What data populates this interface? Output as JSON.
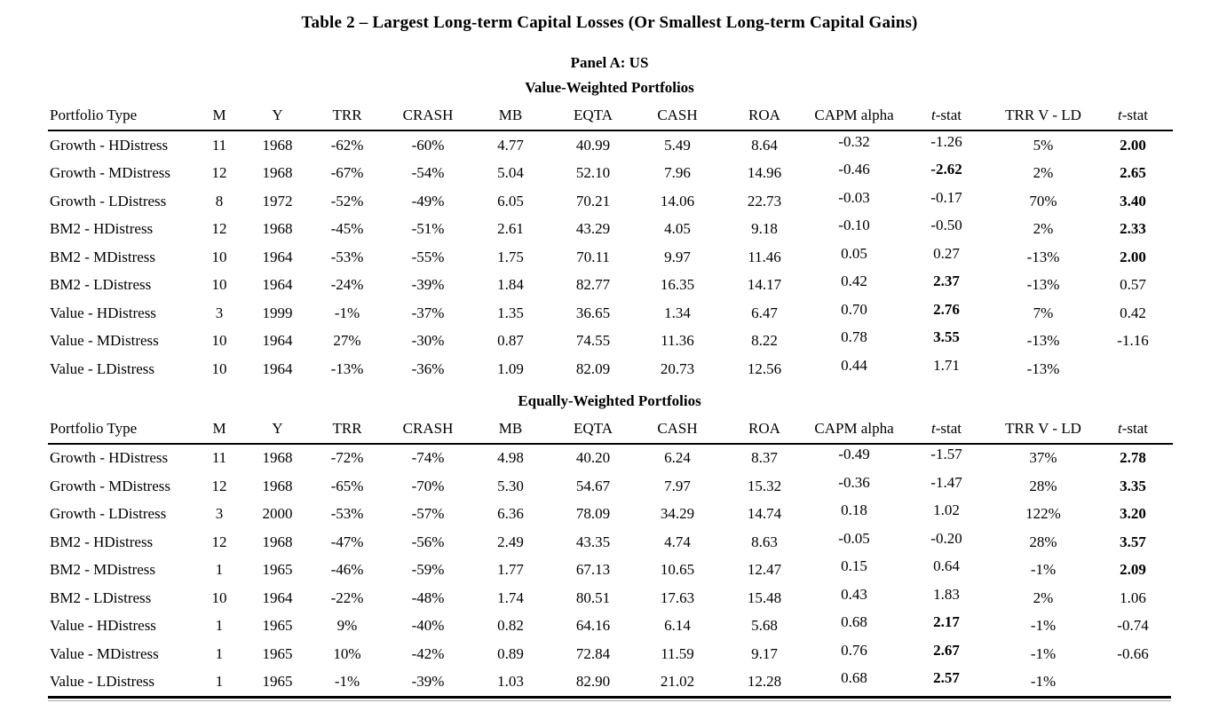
{
  "title": "Table 2 – Largest Long-term Capital Losses (Or Smallest Long-term Capital Gains)",
  "panel": "Panel A: US",
  "sections": [
    {
      "heading": "Value-Weighted Portfolios",
      "columns": [
        {
          "id": "portfolio-type",
          "label": "Portfolio Type"
        },
        {
          "id": "m",
          "label": "M"
        },
        {
          "id": "y",
          "label": "Y"
        },
        {
          "id": "trr",
          "label": "TRR"
        },
        {
          "id": "crash",
          "label": "CRASH"
        },
        {
          "id": "mb",
          "label": "MB"
        },
        {
          "id": "eqta",
          "label": "EQTA"
        },
        {
          "id": "cash",
          "label": "CASH"
        },
        {
          "id": "roa",
          "label": "ROA"
        },
        {
          "id": "capm-alpha",
          "label": "CAPM alpha"
        },
        {
          "id": "t-stat-alpha",
          "label": "t-stat",
          "italic_first": true
        },
        {
          "id": "trr-v-ld",
          "label": "TRR V - LD"
        },
        {
          "id": "t-stat-trr",
          "label": "t-stat",
          "italic_first": true
        }
      ],
      "rows": [
        {
          "cells": [
            "Growth - HDistress",
            "11",
            "1968",
            "-62%",
            "-60%",
            "4.77",
            "40.99",
            "5.49",
            "8.64",
            "-0.32",
            "-1.26",
            "5%",
            "2.00"
          ],
          "bold": [
            12
          ]
        },
        {
          "cells": [
            "Growth - MDistress",
            "12",
            "1968",
            "-67%",
            "-54%",
            "5.04",
            "52.10",
            "7.96",
            "14.96",
            "-0.46",
            "-2.62",
            "2%",
            "2.65"
          ],
          "bold": [
            10,
            12
          ]
        },
        {
          "cells": [
            "Growth - LDistress",
            "8",
            "1972",
            "-52%",
            "-49%",
            "6.05",
            "70.21",
            "14.06",
            "22.73",
            "-0.03",
            "-0.17",
            "70%",
            "3.40"
          ],
          "bold": [
            12
          ]
        },
        {
          "cells": [
            "BM2 - HDistress",
            "12",
            "1968",
            "-45%",
            "-51%",
            "2.61",
            "43.29",
            "4.05",
            "9.18",
            "-0.10",
            "-0.50",
            "2%",
            "2.33"
          ],
          "bold": [
            12
          ]
        },
        {
          "cells": [
            "BM2 - MDistress",
            "10",
            "1964",
            "-53%",
            "-55%",
            "1.75",
            "70.11",
            "9.97",
            "11.46",
            "0.05",
            "0.27",
            "-13%",
            "2.00"
          ],
          "bold": [
            12
          ]
        },
        {
          "cells": [
            "BM2 - LDistress",
            "10",
            "1964",
            "-24%",
            "-39%",
            "1.84",
            "82.77",
            "16.35",
            "14.17",
            "0.42",
            "2.37",
            "-13%",
            "0.57"
          ],
          "bold": [
            10
          ]
        },
        {
          "cells": [
            "Value - HDistress",
            "3",
            "1999",
            "-1%",
            "-37%",
            "1.35",
            "36.65",
            "1.34",
            "6.47",
            "0.70",
            "2.76",
            "7%",
            "0.42"
          ],
          "bold": [
            10
          ]
        },
        {
          "cells": [
            "Value - MDistress",
            "10",
            "1964",
            "27%",
            "-30%",
            "0.87",
            "74.55",
            "11.36",
            "8.22",
            "0.78",
            "3.55",
            "-13%",
            "-1.16"
          ],
          "bold": [
            10
          ]
        },
        {
          "cells": [
            "Value - LDistress",
            "10",
            "1964",
            "-13%",
            "-36%",
            "1.09",
            "82.09",
            "20.73",
            "12.56",
            "0.44",
            "1.71",
            "-13%",
            ""
          ],
          "bold": []
        }
      ]
    },
    {
      "heading": "Equally-Weighted Portfolios",
      "columns": [
        {
          "id": "portfolio-type",
          "label": "Portfolio Type"
        },
        {
          "id": "m",
          "label": "M"
        },
        {
          "id": "y",
          "label": "Y"
        },
        {
          "id": "trr",
          "label": "TRR"
        },
        {
          "id": "crash",
          "label": "CRASH"
        },
        {
          "id": "mb",
          "label": "MB"
        },
        {
          "id": "eqta",
          "label": "EQTA"
        },
        {
          "id": "cash",
          "label": "CASH"
        },
        {
          "id": "roa",
          "label": "ROA"
        },
        {
          "id": "capm-alpha",
          "label": "CAPM alpha"
        },
        {
          "id": "t-stat-alpha",
          "label": "t-stat",
          "italic_first": true
        },
        {
          "id": "trr-v-ld",
          "label": "TRR V - LD"
        },
        {
          "id": "t-stat-trr",
          "label": "t-stat",
          "italic_first": true
        }
      ],
      "rows": [
        {
          "cells": [
            "Growth - HDistress",
            "11",
            "1968",
            "-72%",
            "-74%",
            "4.98",
            "40.20",
            "6.24",
            "8.37",
            "-0.49",
            "-1.57",
            "37%",
            "2.78"
          ],
          "bold": [
            12
          ]
        },
        {
          "cells": [
            "Growth - MDistress",
            "12",
            "1968",
            "-65%",
            "-70%",
            "5.30",
            "54.67",
            "7.97",
            "15.32",
            "-0.36",
            "-1.47",
            "28%",
            "3.35"
          ],
          "bold": [
            12
          ]
        },
        {
          "cells": [
            "Growth - LDistress",
            "3",
            "2000",
            "-53%",
            "-57%",
            "6.36",
            "78.09",
            "34.29",
            "14.74",
            "0.18",
            "1.02",
            "122%",
            "3.20"
          ],
          "bold": [
            12
          ]
        },
        {
          "cells": [
            "BM2 - HDistress",
            "12",
            "1968",
            "-47%",
            "-56%",
            "2.49",
            "43.35",
            "4.74",
            "8.63",
            "-0.05",
            "-0.20",
            "28%",
            "3.57"
          ],
          "bold": [
            12
          ]
        },
        {
          "cells": [
            "BM2 - MDistress",
            "1",
            "1965",
            "-46%",
            "-59%",
            "1.77",
            "67.13",
            "10.65",
            "12.47",
            "0.15",
            "0.64",
            "-1%",
            "2.09"
          ],
          "bold": [
            12
          ]
        },
        {
          "cells": [
            "BM2 - LDistress",
            "10",
            "1964",
            "-22%",
            "-48%",
            "1.74",
            "80.51",
            "17.63",
            "15.48",
            "0.43",
            "1.83",
            "2%",
            "1.06"
          ],
          "bold": []
        },
        {
          "cells": [
            "Value - HDistress",
            "1",
            "1965",
            "9%",
            "-40%",
            "0.82",
            "64.16",
            "6.14",
            "5.68",
            "0.68",
            "2.17",
            "-1%",
            "-0.74"
          ],
          "bold": [
            10
          ]
        },
        {
          "cells": [
            "Value - MDistress",
            "1",
            "1965",
            "10%",
            "-42%",
            "0.89",
            "72.84",
            "11.59",
            "9.17",
            "0.76",
            "2.67",
            "-1%",
            "-0.66"
          ],
          "bold": [
            10
          ]
        },
        {
          "cells": [
            "Value - LDistress",
            "1",
            "1965",
            "-1%",
            "-39%",
            "1.03",
            "82.90",
            "21.02",
            "12.28",
            "0.68",
            "2.57",
            "-1%",
            ""
          ],
          "bold": [
            10
          ]
        }
      ]
    }
  ]
}
